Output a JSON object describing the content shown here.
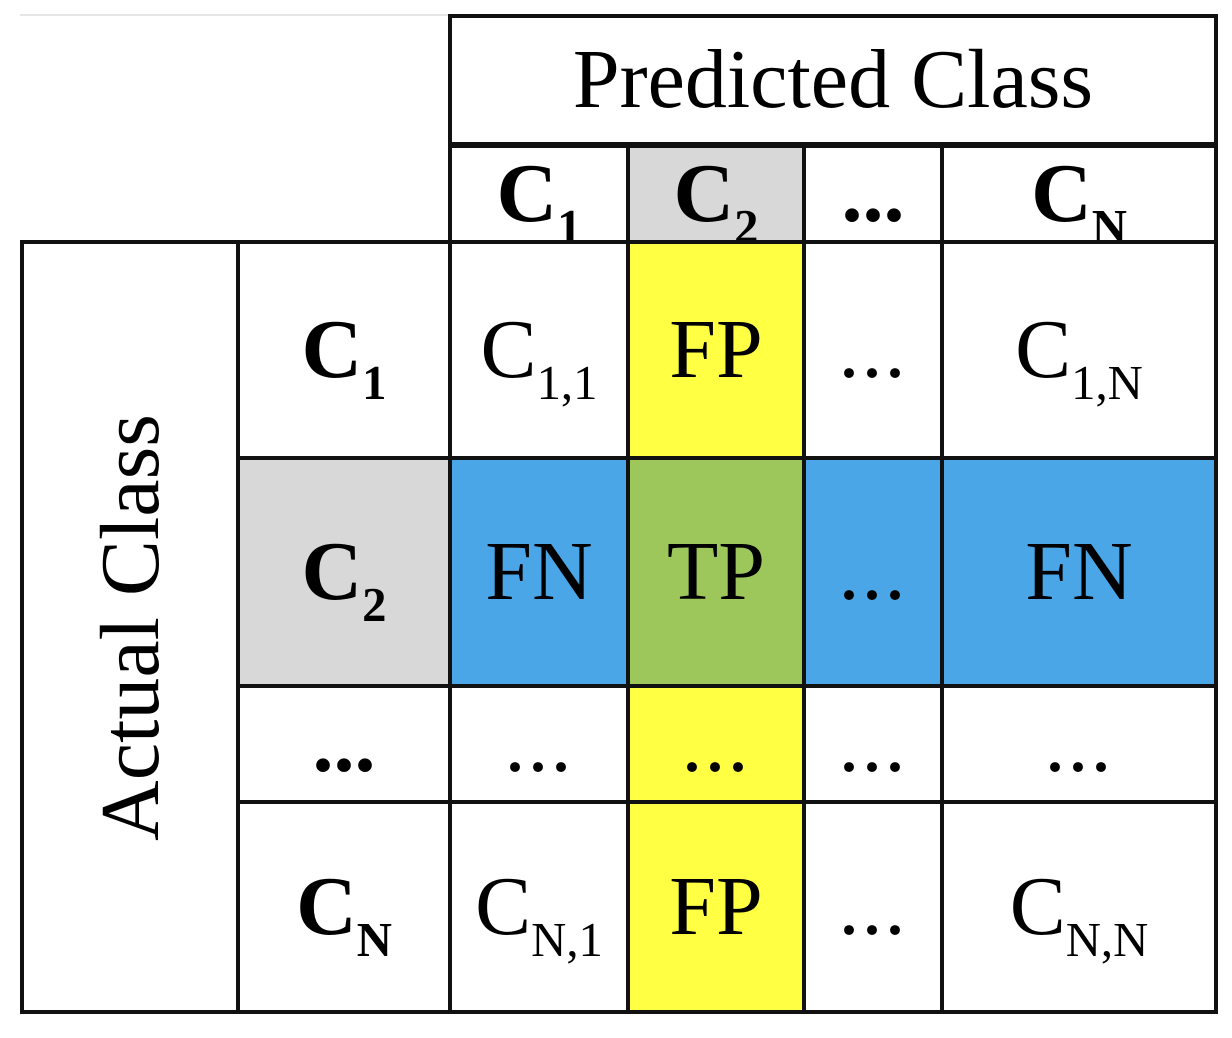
{
  "predicted_label": "Predicted Class",
  "actual_label": "Actual Class",
  "headers": {
    "c1": {
      "base": "C",
      "sub": "1"
    },
    "c2": {
      "base": "C",
      "sub": "2"
    },
    "dots": "...",
    "cn": {
      "base": "C",
      "sub": "N"
    }
  },
  "cells": {
    "c11": {
      "base": "C",
      "sub": "1,1"
    },
    "c1n": {
      "base": "C",
      "sub": "1,N"
    },
    "cn1": {
      "base": "C",
      "sub": "N,1"
    },
    "cnn": {
      "base": "C",
      "sub": "N,N"
    },
    "fp": "FP",
    "fn": "FN",
    "tp": "TP",
    "ellipsis": "..."
  },
  "colors": {
    "yellow": "#ffff44",
    "blue": "#4aa6e6",
    "green": "#9dc65b",
    "gray": "#d8d8d8",
    "white": "#ffffff"
  }
}
